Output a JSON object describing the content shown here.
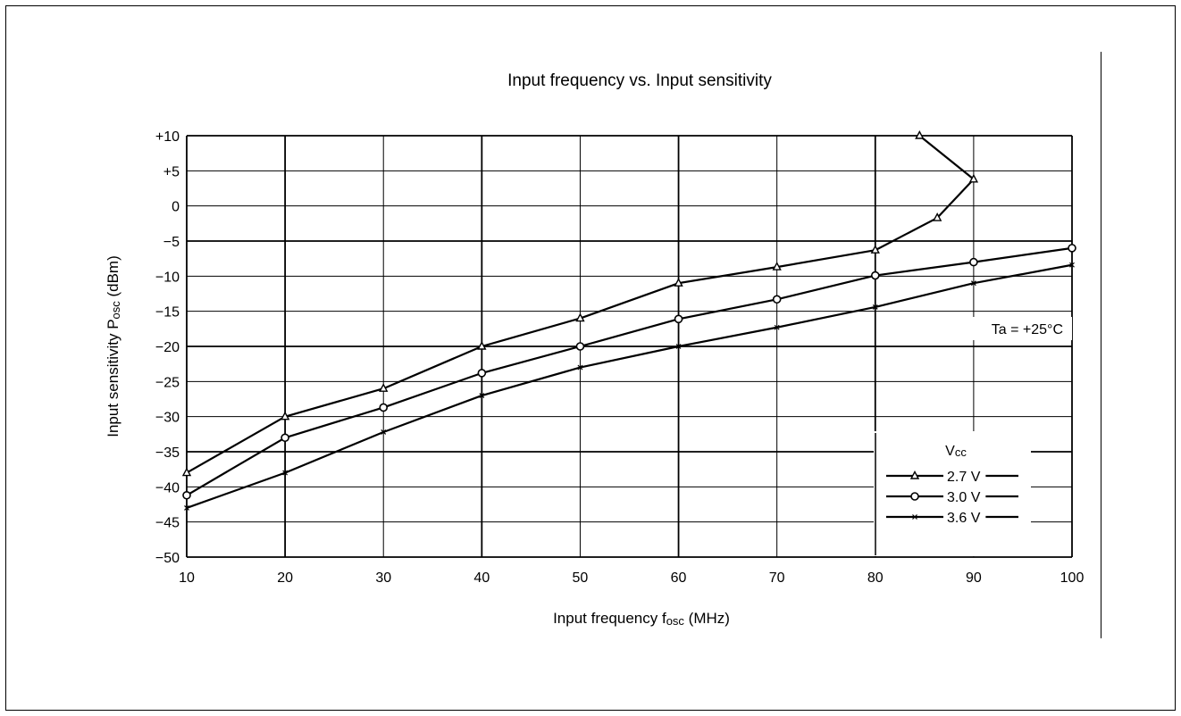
{
  "chart_data": {
    "type": "line",
    "title": "Input frequency vs. Input sensitivity",
    "xlabel": "Input frequency fosc (MHz)",
    "xlabel_parts": [
      "Input frequency f",
      "osc",
      " (MHz)"
    ],
    "ylabel": "Input sensitivity Posc (dBm)",
    "ylabel_parts": [
      "Input sensitivity P",
      "osc",
      " (dBm)"
    ],
    "xlim": [
      10,
      100
    ],
    "ylim": [
      -50,
      10
    ],
    "xticks": [
      10,
      20,
      30,
      40,
      50,
      60,
      70,
      80,
      90,
      100
    ],
    "yticks": [
      10,
      5,
      0,
      -5,
      -10,
      -15,
      -20,
      -25,
      -30,
      -35,
      -40,
      -45,
      -50
    ],
    "ytick_labels": [
      "+10",
      "+5",
      "0",
      "−5",
      "−10",
      "−15",
      "−20",
      "−25",
      "−30",
      "−35",
      "−40",
      "−45",
      "−50"
    ],
    "grid": true,
    "major_grid_x": [
      20,
      40,
      60,
      80
    ],
    "major_grid_y": [
      -5,
      -20,
      -35
    ],
    "annotation": "Ta = +25°C",
    "legend": {
      "title": "Vcc",
      "title_parts": [
        "V",
        "cc"
      ],
      "position": "bottom-right"
    },
    "series": [
      {
        "name": "2.7 V",
        "marker": "triangle",
        "x": [
          10,
          20,
          30,
          40,
          50,
          60,
          70,
          80,
          86.3,
          90,
          84.5
        ],
        "y": [
          -38,
          -30,
          -26,
          -20,
          -16,
          -11,
          -8.7,
          -6.3,
          -1.7,
          3.8,
          10
        ]
      },
      {
        "name": "3.0 V",
        "marker": "circle",
        "x": [
          10,
          20,
          30,
          40,
          50,
          60,
          70,
          80,
          90,
          100
        ],
        "y": [
          -41.2,
          -33,
          -28.7,
          -23.8,
          -20,
          -16.1,
          -13.3,
          -9.9,
          -8,
          -6
        ]
      },
      {
        "name": "3.6 V",
        "marker": "cross",
        "x": [
          10,
          20,
          30,
          40,
          50,
          60,
          70,
          80,
          90,
          100
        ],
        "y": [
          -43,
          -38,
          -32.2,
          -27,
          -23,
          -20,
          -17.3,
          -14.4,
          -11,
          -8.4
        ]
      }
    ]
  }
}
